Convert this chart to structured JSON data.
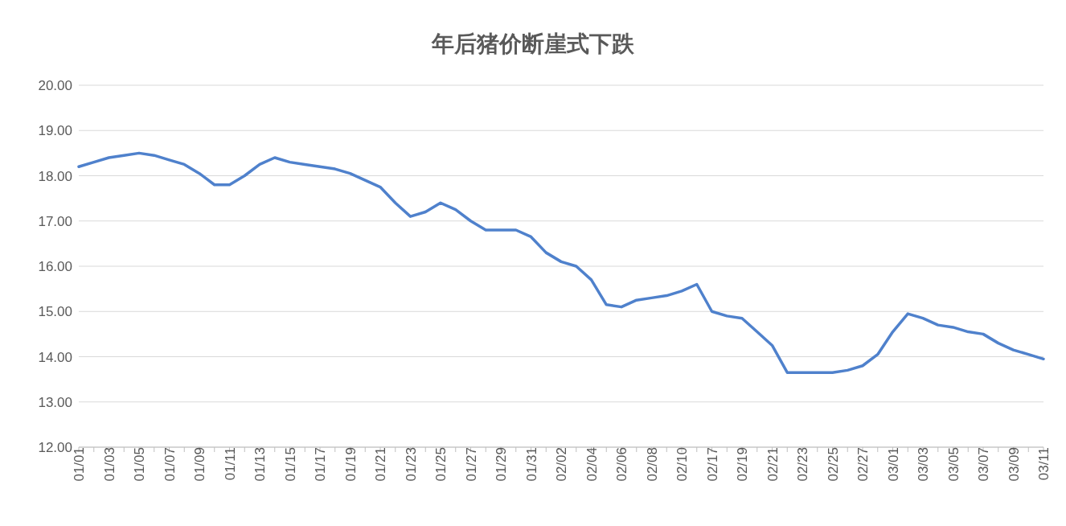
{
  "chart_data": {
    "type": "line",
    "title": "年后猪价断崖式下跌",
    "categories": [
      "01/01",
      null,
      "01/03",
      null,
      "01/05",
      null,
      "01/07",
      null,
      "01/09",
      null,
      "01/11",
      null,
      "01/13",
      null,
      "01/15",
      null,
      "01/17",
      null,
      "01/19",
      null,
      "01/21",
      null,
      "01/23",
      null,
      "01/25",
      null,
      "01/27",
      null,
      "01/29",
      null,
      "01/31",
      null,
      "02/02",
      null,
      "02/04",
      null,
      "02/06",
      null,
      "02/08",
      null,
      "02/10",
      null,
      "02/17",
      null,
      "02/19",
      null,
      "02/21",
      null,
      "02/23",
      null,
      "02/25",
      null,
      "02/27",
      null,
      "03/01",
      null,
      "03/03",
      null,
      "03/05",
      null,
      "03/07",
      null,
      "03/09",
      null,
      "03/11"
    ],
    "series": [
      {
        "color": "#4f81cc",
        "values": [
          18.2,
          18.3,
          18.4,
          18.45,
          18.5,
          18.45,
          18.35,
          18.25,
          18.05,
          17.8,
          17.8,
          18.0,
          18.25,
          18.4,
          18.3,
          18.25,
          18.2,
          18.15,
          18.05,
          17.9,
          17.75,
          17.4,
          17.1,
          17.2,
          17.4,
          17.25,
          17.0,
          16.8,
          16.8,
          16.8,
          16.65,
          16.3,
          16.1,
          16.0,
          15.7,
          15.15,
          15.1,
          15.25,
          15.3,
          15.35,
          15.45,
          15.6,
          15.0,
          14.9,
          14.85,
          14.55,
          14.25,
          13.65,
          13.65,
          13.65,
          13.65,
          13.7,
          13.8,
          14.05,
          14.55,
          14.95,
          14.85,
          14.7,
          14.65,
          14.55,
          14.5,
          14.3,
          14.15,
          14.05,
          13.95
        ]
      }
    ],
    "ylim": [
      12,
      20
    ],
    "yticks": [
      {
        "value": 12,
        "label": "12.00"
      },
      {
        "value": 13,
        "label": "13.00"
      },
      {
        "value": 14,
        "label": "14.00"
      },
      {
        "value": 15,
        "label": "15.00"
      },
      {
        "value": 16,
        "label": "16.00"
      },
      {
        "value": 17,
        "label": "17.00"
      },
      {
        "value": 18,
        "label": "18.00"
      },
      {
        "value": 19,
        "label": "19.00"
      },
      {
        "value": 20,
        "label": "20.00"
      }
    ],
    "grid": "y",
    "legend": false,
    "marker": "none",
    "line_style": "solid"
  }
}
